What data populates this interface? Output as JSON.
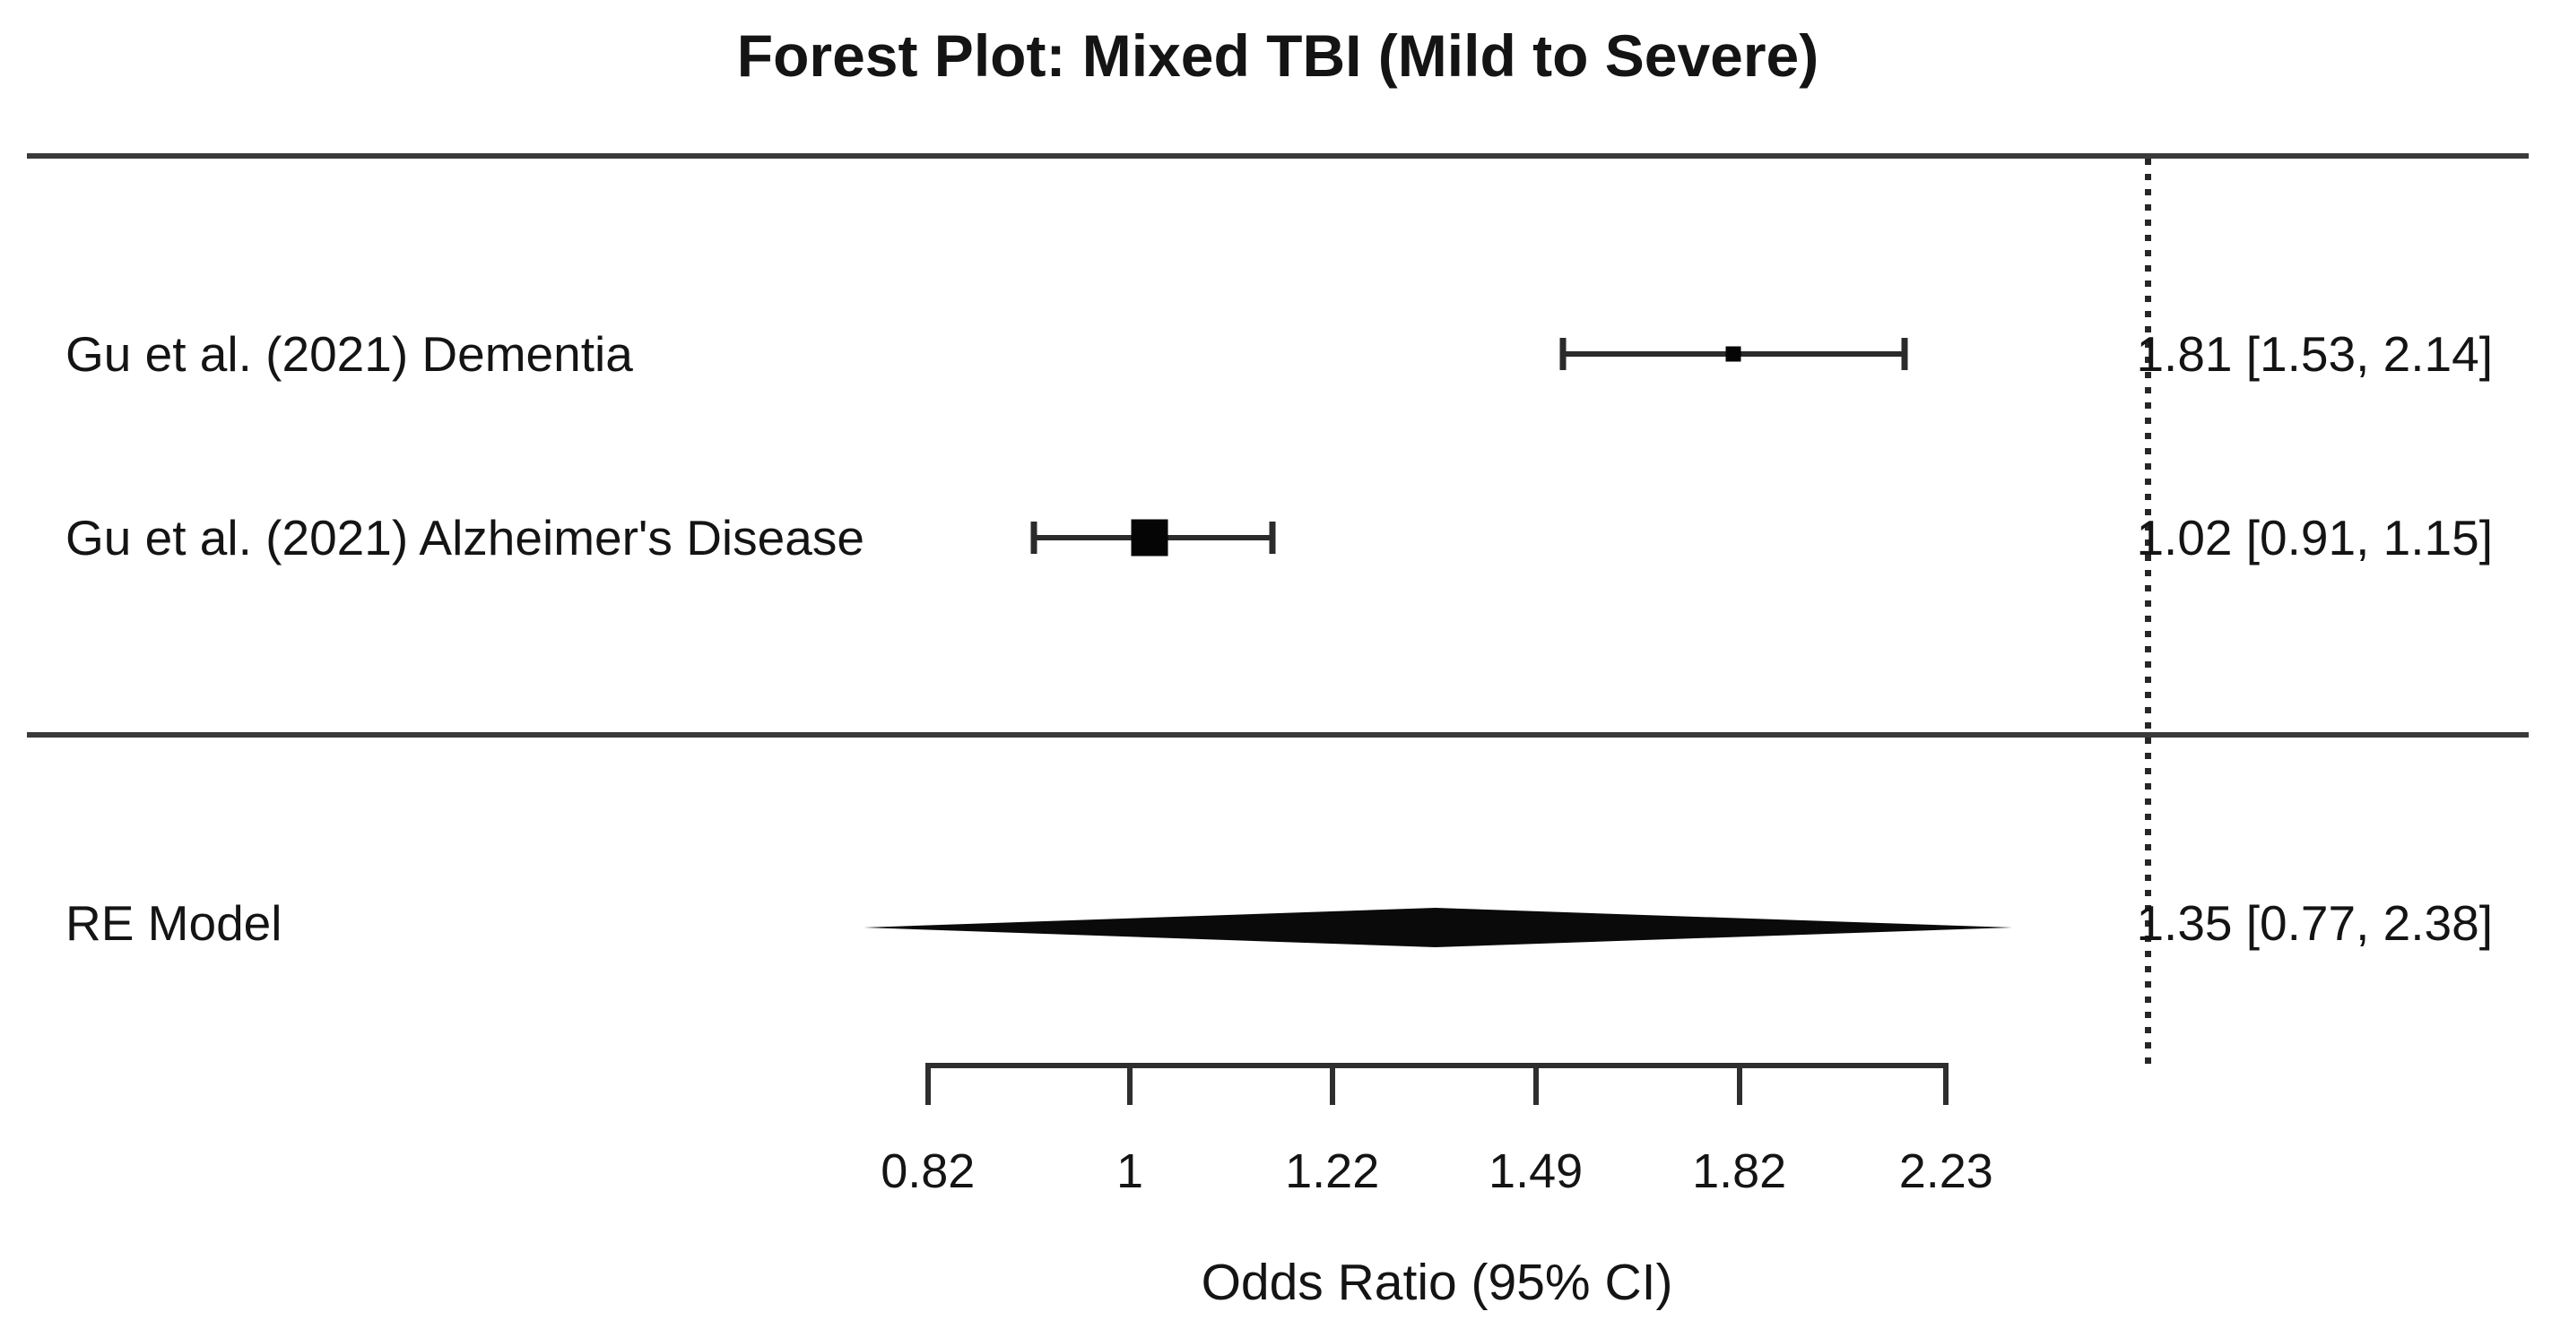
{
  "chart_data": {
    "type": "forest",
    "title": "Forest Plot: Mixed TBI (Mild to Severe)",
    "xlabel": "Odds Ratio (95% CI)",
    "x_scale": "log",
    "xlim": [
      0.82,
      2.23
    ],
    "x_ticks": [
      {
        "value": 0.82,
        "label": "0.82"
      },
      {
        "value": 1,
        "label": "1"
      },
      {
        "value": 1.22,
        "label": "1.22"
      },
      {
        "value": 1.49,
        "label": "1.49"
      },
      {
        "value": 1.82,
        "label": "1.82"
      },
      {
        "value": 2.23,
        "label": "2.23"
      }
    ],
    "studies": [
      {
        "label": "Gu et al. (2021) Dementia",
        "or": 1.81,
        "ci_low": 1.53,
        "ci_high": 2.14,
        "annotation": "1.81 [1.53, 2.14]"
      },
      {
        "label": "Gu et al. (2021) Alzheimer's Disease",
        "or": 1.02,
        "ci_low": 0.91,
        "ci_high": 1.15,
        "annotation": "1.02 [0.91, 1.15]"
      }
    ],
    "summary": {
      "label": "RE Model",
      "or": 1.35,
      "ci_low": 0.77,
      "ci_high": 2.38,
      "annotation": "1.35 [0.77, 2.38]"
    },
    "colors": {
      "text": "#141414",
      "lines": "#2e2e2e",
      "marker": "#050505"
    }
  }
}
